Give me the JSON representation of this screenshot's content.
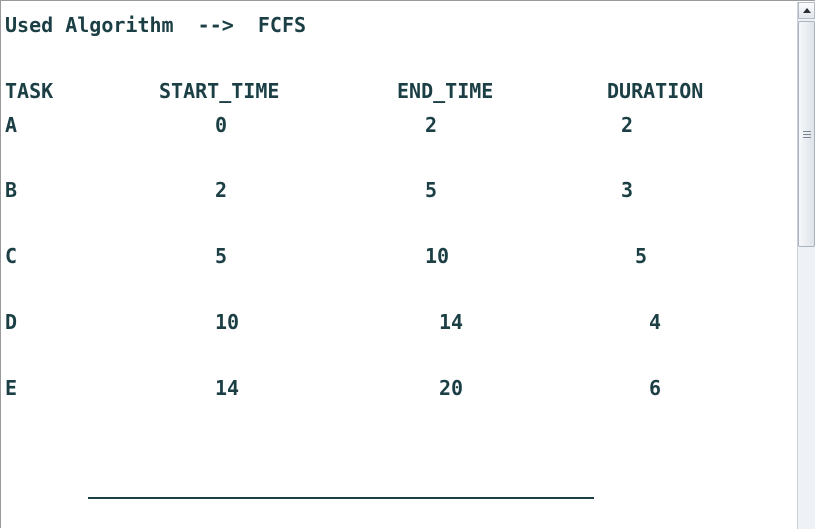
{
  "output": {
    "header_line": "Used Algorithm  -->  FCFS",
    "columns": [
      "TASK",
      "START_TIME",
      "END_TIME",
      "DURATION"
    ],
    "rows": [
      {
        "task": "A",
        "start": "0",
        "end": "2",
        "duration": "2"
      },
      {
        "task": "B",
        "start": "2",
        "end": "5",
        "duration": "3"
      },
      {
        "task": "C",
        "start": "5",
        "end": "10",
        "duration": "5"
      },
      {
        "task": "D",
        "start": "10",
        "end": "14",
        "duration": "4"
      },
      {
        "task": "E",
        "start": "14",
        "end": "20",
        "duration": "6"
      }
    ]
  },
  "scrollbar": {
    "up_icon": "arrow-up-icon"
  },
  "colors": {
    "text": "#1b3f45",
    "background": "#ffffff",
    "scrollbar_track": "#eef1f5"
  }
}
